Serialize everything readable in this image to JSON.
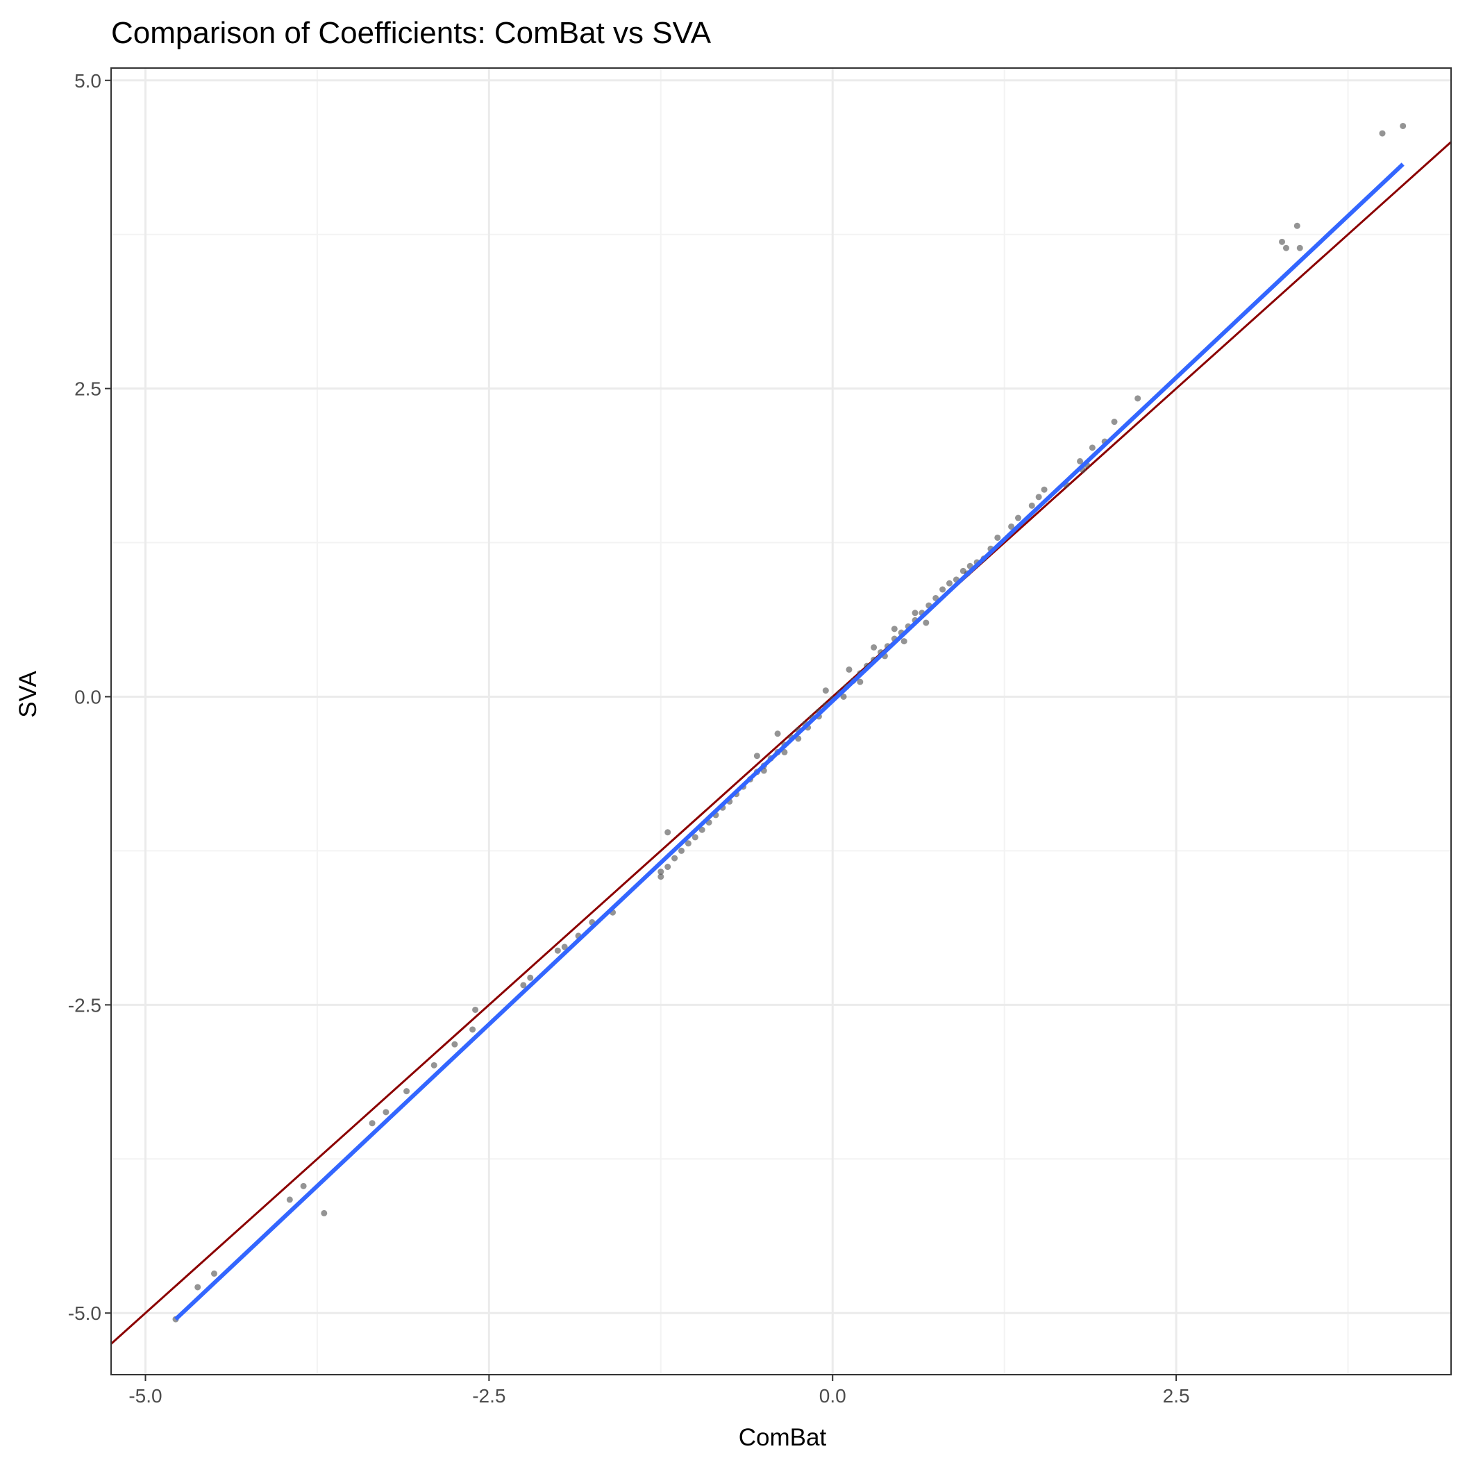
{
  "chart_data": {
    "type": "scatter",
    "title": "Comparison of Coefficients: ComBat vs SVA",
    "xlabel": "ComBat",
    "ylabel": "SVA",
    "xlim": [
      -5.25,
      4.5
    ],
    "ylim": [
      -5.5,
      5.1
    ],
    "x_ticks": [
      -5.0,
      -2.5,
      0.0,
      2.5
    ],
    "x_tick_labels": [
      "-5.0",
      "-2.5",
      "0.0",
      "2.5"
    ],
    "y_ticks": [
      -5.0,
      -2.5,
      0.0,
      2.5,
      5.0
    ],
    "y_tick_labels": [
      "-5.0",
      "-2.5",
      "0.0",
      "2.5",
      "5.0"
    ],
    "grid": true,
    "legend": "none",
    "colors": {
      "points": "#4d4d4d",
      "fit_line": "#3366ff",
      "identity_line": "#8b0000",
      "grid_major": "#ebebeb",
      "grid_minor": "#f3f3f3",
      "panel_border": "#333333"
    },
    "series": [
      {
        "kind": "points",
        "x": [
          4.15,
          4.0,
          3.38,
          3.27,
          3.3,
          3.4,
          2.22,
          2.05,
          1.98,
          1.89,
          1.85,
          1.8,
          1.82,
          1.7,
          1.54,
          1.5,
          1.45,
          1.35,
          1.3,
          1.2,
          1.15,
          1.05,
          0.98,
          0.8,
          0.75,
          0.7,
          0.65,
          0.6,
          0.55,
          0.5,
          0.45,
          0.4,
          0.35,
          0.3,
          0.25,
          0.2,
          0.15,
          0.1,
          0.05,
          0.0,
          -0.05,
          -0.1,
          -0.15,
          -0.2,
          -0.25,
          -0.3,
          -0.35,
          -0.4,
          -0.45,
          -0.5,
          -0.55,
          -0.6,
          -0.65,
          -0.7,
          -0.75,
          -0.8,
          -0.85,
          -0.9,
          -0.95,
          -1.0,
          -1.05,
          -1.1,
          -1.15,
          -1.2,
          -1.25,
          -1.25,
          -1.2,
          -1.6,
          -1.75,
          -1.85,
          -1.95,
          -2.0,
          -2.2,
          -2.25,
          -2.6,
          -2.62,
          -2.75,
          -2.9,
          -3.1,
          -3.25,
          -3.35,
          -3.85,
          -3.95,
          -3.7,
          -4.5,
          -4.62,
          -4.78,
          0.12,
          -0.1,
          0.3,
          -0.25,
          0.45,
          -0.35,
          0.6,
          -0.5,
          0.08,
          -0.05,
          0.2,
          -0.18,
          0.38,
          -0.4,
          0.52,
          -0.55,
          0.68,
          0.85,
          0.9,
          0.95,
          1.0,
          1.1
        ],
        "y": [
          4.63,
          4.57,
          3.82,
          3.69,
          3.64,
          3.64,
          2.42,
          2.23,
          2.07,
          2.02,
          1.88,
          1.91,
          1.84,
          1.72,
          1.68,
          1.62,
          1.55,
          1.45,
          1.38,
          1.29,
          1.2,
          1.09,
          1.0,
          0.87,
          0.8,
          0.74,
          0.68,
          0.62,
          0.57,
          0.52,
          0.47,
          0.41,
          0.36,
          0.3,
          0.25,
          0.19,
          0.13,
          0.08,
          0.03,
          -0.02,
          -0.07,
          -0.12,
          -0.17,
          -0.22,
          -0.27,
          -0.33,
          -0.39,
          -0.45,
          -0.5,
          -0.56,
          -0.61,
          -0.67,
          -0.73,
          -0.79,
          -0.85,
          -0.9,
          -0.96,
          -1.02,
          -1.08,
          -1.14,
          -1.19,
          -1.25,
          -1.31,
          -1.38,
          -1.42,
          -1.46,
          -1.1,
          -1.75,
          -1.83,
          -1.94,
          -2.03,
          -2.06,
          -2.28,
          -2.34,
          -2.54,
          -2.7,
          -2.82,
          -2.99,
          -3.2,
          -3.37,
          -3.46,
          -3.97,
          -4.08,
          -4.19,
          -4.68,
          -4.79,
          -5.05,
          0.22,
          -0.16,
          0.4,
          -0.34,
          0.55,
          -0.45,
          0.68,
          -0.6,
          0.0,
          0.05,
          0.12,
          -0.25,
          0.33,
          -0.3,
          0.45,
          -0.48,
          0.6,
          0.92,
          0.95,
          1.02,
          1.06,
          1.12
        ]
      },
      {
        "kind": "line",
        "name": "",
        "x": [
          -4.78,
          4.15
        ],
        "y": [
          -5.05,
          4.32
        ]
      },
      {
        "kind": "line",
        "name": "",
        "x": [
          -5.25,
          4.5
        ],
        "y": [
          -5.25,
          4.5
        ]
      }
    ]
  }
}
